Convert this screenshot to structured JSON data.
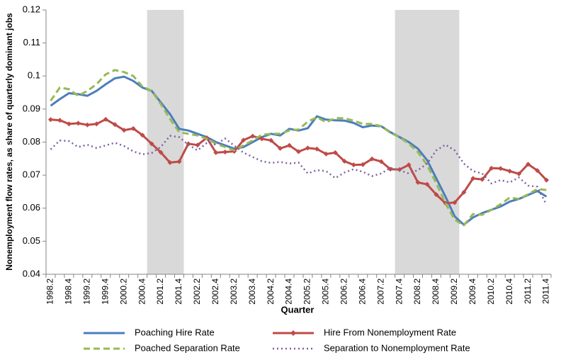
{
  "chart_data": {
    "type": "line",
    "y_label": "Nonemployment flow rates, as share of quarterly dominant jobs",
    "x_label": "Quarter",
    "categories": [
      "1998.2",
      null,
      "1998.4",
      null,
      "1999.2",
      null,
      "1999.4",
      null,
      "2000.2",
      null,
      "2000.4",
      null,
      "2001.2",
      null,
      "2001.4",
      null,
      "2002.2",
      null,
      "2002.4",
      null,
      "2003.2",
      null,
      "2003.4",
      null,
      "2004.2",
      null,
      "2004.4",
      null,
      "2005.2",
      null,
      "2005.4",
      null,
      "2006.2",
      null,
      "2006.4",
      null,
      "2007.2",
      null,
      "2007.4",
      null,
      "2008.2",
      null,
      "2008.4",
      null,
      "2009.2",
      null,
      "2009.4",
      null,
      "2010.2",
      null,
      "2010.4",
      null,
      "2011.2",
      null,
      "2011.4"
    ],
    "ylim": [
      0.04,
      0.12
    ],
    "yticks": [
      0.04,
      0.05,
      0.06,
      0.07,
      0.08,
      0.09,
      0.1,
      0.11,
      0.12
    ],
    "shaded_ranges": [
      [
        10.5,
        14.5
      ],
      [
        37.5,
        44.5
      ]
    ],
    "shade_color": "#d9d9d9",
    "series": [
      {
        "name": "Poaching Hire Rate",
        "color": "#4a7ebb",
        "line_style": "solid",
        "marker": "none",
        "values": [
          0.091,
          0.093,
          0.0948,
          0.0945,
          0.094,
          0.0955,
          0.0975,
          0.0993,
          0.0998,
          0.0985,
          0.0965,
          0.0955,
          0.092,
          0.0885,
          0.084,
          0.0835,
          0.0825,
          0.0815,
          0.08,
          0.079,
          0.078,
          0.0785,
          0.08,
          0.0815,
          0.0825,
          0.082,
          0.084,
          0.0835,
          0.0842,
          0.0878,
          0.0868,
          0.0866,
          0.0865,
          0.0858,
          0.0845,
          0.085,
          0.0848,
          0.083,
          0.0815,
          0.08,
          0.078,
          0.0745,
          0.069,
          0.0635,
          0.0575,
          0.055,
          0.0572,
          0.0585,
          0.0595,
          0.0605,
          0.062,
          0.0628,
          0.064,
          0.0652,
          0.0635
        ]
      },
      {
        "name": "Hire From Nonemployment Rate",
        "color": "#be4b48",
        "line_style": "solid",
        "marker": "diamond",
        "values": [
          0.0868,
          0.0866,
          0.0855,
          0.0857,
          0.0852,
          0.0855,
          0.0869,
          0.0853,
          0.0836,
          0.0841,
          0.0821,
          0.0795,
          0.0769,
          0.0738,
          0.0741,
          0.0795,
          0.0791,
          0.0813,
          0.0768,
          0.077,
          0.0772,
          0.0806,
          0.0818,
          0.081,
          0.0805,
          0.0781,
          0.079,
          0.0771,
          0.0782,
          0.0779,
          0.0764,
          0.0768,
          0.0742,
          0.0731,
          0.0732,
          0.0749,
          0.0741,
          0.0718,
          0.0717,
          0.0731,
          0.0678,
          0.0672,
          0.0641,
          0.0615,
          0.0617,
          0.0648,
          0.069,
          0.0687,
          0.0721,
          0.072,
          0.0712,
          0.0704,
          0.0733,
          0.0714,
          0.0685
        ]
      },
      {
        "name": "Poached Separation Rate",
        "color": "#98b954",
        "line_style": "dashed",
        "marker": "none",
        "values": [
          0.0925,
          0.0965,
          0.096,
          0.094,
          0.0955,
          0.0975,
          0.1005,
          0.1018,
          0.1012,
          0.1,
          0.0968,
          0.0955,
          0.0915,
          0.087,
          0.083,
          0.0825,
          0.082,
          0.081,
          0.0795,
          0.0785,
          0.0775,
          0.079,
          0.0805,
          0.0822,
          0.0825,
          0.0825,
          0.0835,
          0.0838,
          0.0862,
          0.0875,
          0.086,
          0.0873,
          0.0872,
          0.0865,
          0.0855,
          0.0855,
          0.0848,
          0.0828,
          0.0815,
          0.0795,
          0.077,
          0.073,
          0.0675,
          0.0615,
          0.0565,
          0.0548,
          0.0582,
          0.058,
          0.0595,
          0.0612,
          0.0632,
          0.0628,
          0.0642,
          0.0658,
          0.0655
        ]
      },
      {
        "name": "Separation to Nonemployment Rate",
        "color": "#7d60a0",
        "line_style": "dotted",
        "marker": "none",
        "values": [
          0.0778,
          0.0805,
          0.0803,
          0.0785,
          0.0792,
          0.0782,
          0.079,
          0.0798,
          0.0788,
          0.0772,
          0.0763,
          0.0767,
          0.0785,
          0.0819,
          0.0815,
          0.0792,
          0.0775,
          0.0797,
          0.0792,
          0.0811,
          0.0789,
          0.0768,
          0.0755,
          0.0742,
          0.0737,
          0.074,
          0.0735,
          0.0738,
          0.0705,
          0.0715,
          0.0712,
          0.0691,
          0.0708,
          0.0718,
          0.071,
          0.0697,
          0.0705,
          0.0722,
          0.0715,
          0.0705,
          0.0715,
          0.0735,
          0.0775,
          0.0792,
          0.0775,
          0.0735,
          0.0712,
          0.0705,
          0.0675,
          0.0685,
          0.0678,
          0.0693,
          0.0668,
          0.0665,
          0.061
        ]
      }
    ]
  }
}
